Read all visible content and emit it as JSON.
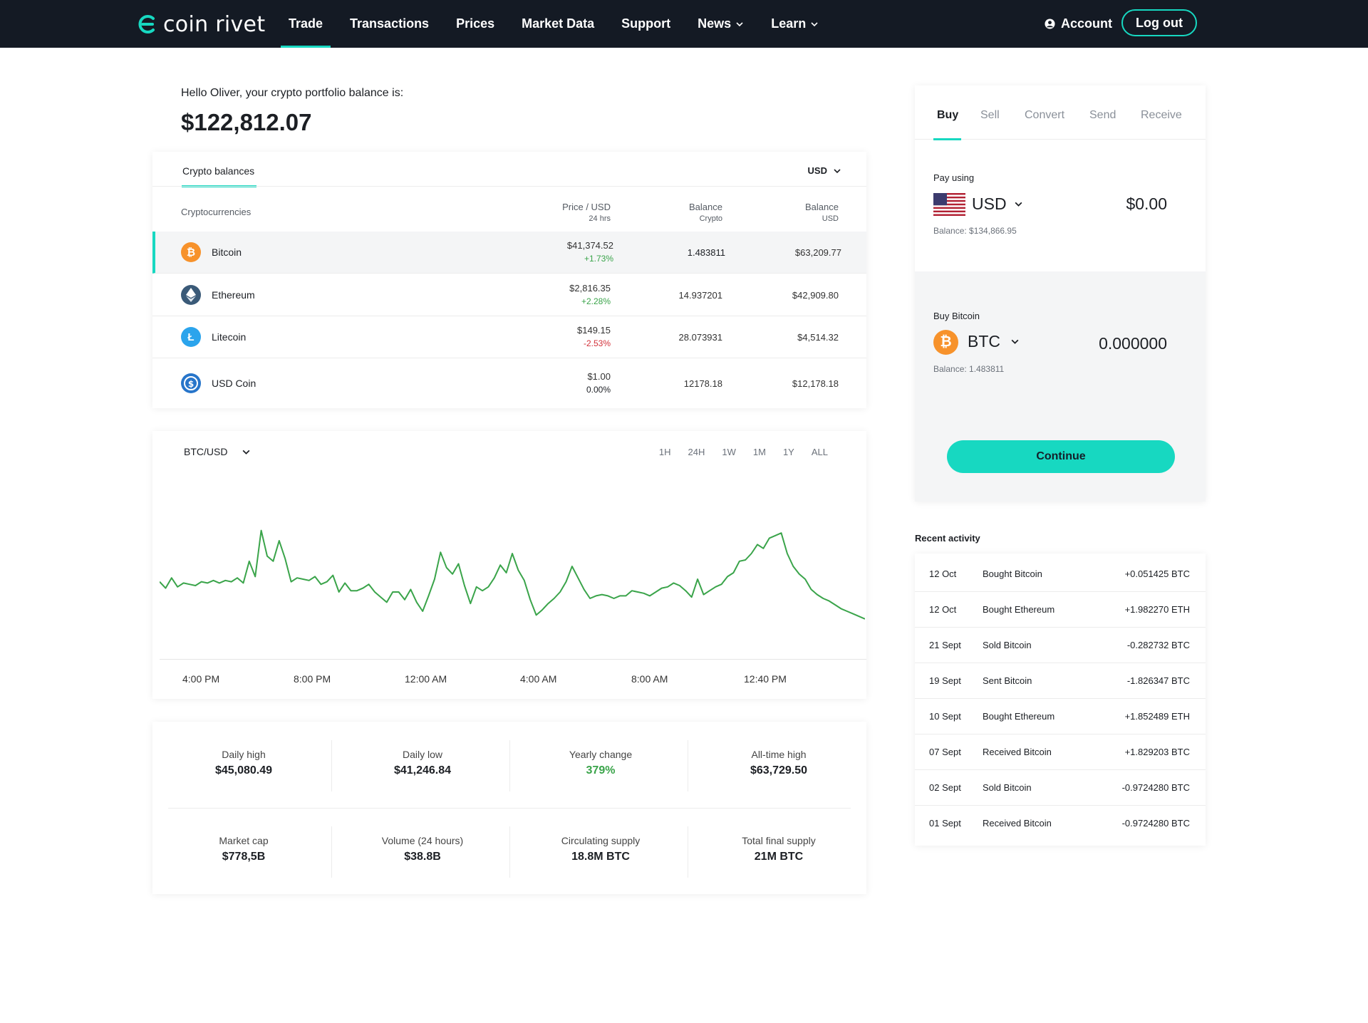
{
  "nav": {
    "logo": "coin rivet",
    "items": [
      {
        "label": "Trade",
        "active": true,
        "dropdown": false
      },
      {
        "label": "Transactions",
        "active": false,
        "dropdown": false
      },
      {
        "label": "Prices",
        "active": false,
        "dropdown": false
      },
      {
        "label": "Market Data",
        "active": false,
        "dropdown": false
      },
      {
        "label": "Support",
        "active": false,
        "dropdown": false
      },
      {
        "label": "News",
        "active": false,
        "dropdown": true
      },
      {
        "label": "Learn",
        "active": false,
        "dropdown": true
      }
    ],
    "account": "Account",
    "logout": "Log out"
  },
  "greeting": {
    "text": "Hello Oliver, your crypto portfolio balance is:",
    "balance": "$122,812.07"
  },
  "balances": {
    "tab": "Crypto balances",
    "currency": "USD",
    "headers": {
      "name": "Cryptocurrencies",
      "price": "Price / USD",
      "price_sub": "24 hrs",
      "crypto": "Balance",
      "crypto_sub": "Crypto",
      "usd": "Balance",
      "usd_sub": "USD"
    },
    "rows": [
      {
        "name": "Bitcoin",
        "icon": "bitcoin-icon",
        "price": "$41,374.52",
        "change": "+1.73%",
        "trend": "pos",
        "crypto": "1.483811",
        "usd": "$63,209.77"
      },
      {
        "name": "Ethereum",
        "icon": "ethereum-icon",
        "price": "$2,816.35",
        "change": "+2.28%",
        "trend": "pos",
        "crypto": "14.937201",
        "usd": "$42,909.80"
      },
      {
        "name": "Litecoin",
        "icon": "litecoin-icon",
        "price": "$149.15",
        "change": "-2.53%",
        "trend": "neg",
        "crypto": "28.073931",
        "usd": "$4,514.32"
      },
      {
        "name": "USD Coin",
        "icon": "usd-coin-icon",
        "price": "$1.00",
        "change": "0.00%",
        "trend": "zero",
        "crypto": "12178.18",
        "usd": "$12,178.18"
      }
    ]
  },
  "chart": {
    "pair": "BTC/USD",
    "ranges": [
      "1H",
      "24H",
      "1W",
      "1M",
      "1Y",
      "ALL"
    ],
    "x_labels": [
      "4:00 PM",
      "8:00 PM",
      "12:00 AM",
      "4:00 AM",
      "8:00 AM",
      "12:40 PM"
    ],
    "line_color": "#3aa44a"
  },
  "chart_data": {
    "type": "line",
    "title": "",
    "xlabel": "",
    "ylabel": "",
    "x_tick_labels": [
      "4:00 PM",
      "8:00 PM",
      "12:00 AM",
      "4:00 AM",
      "8:00 AM",
      "12:40 PM"
    ],
    "series": [
      {
        "values": [
          0.38,
          0.33,
          0.41,
          0.34,
          0.37,
          0.36,
          0.35,
          0.38,
          0.37,
          0.39,
          0.37,
          0.39,
          0.38,
          0.41,
          0.37,
          0.54,
          0.42,
          0.78,
          0.58,
          0.54,
          0.7,
          0.56,
          0.38,
          0.41,
          0.4,
          0.39,
          0.42,
          0.36,
          0.38,
          0.43,
          0.3,
          0.37,
          0.31,
          0.31,
          0.33,
          0.36,
          0.3,
          0.26,
          0.22,
          0.3,
          0.3,
          0.24,
          0.32,
          0.22,
          0.15,
          0.27,
          0.4,
          0.61,
          0.49,
          0.44,
          0.52,
          0.35,
          0.21,
          0.34,
          0.31,
          0.34,
          0.41,
          0.51,
          0.45,
          0.6,
          0.47,
          0.39,
          0.24,
          0.12,
          0.16,
          0.21,
          0.25,
          0.3,
          0.38,
          0.5,
          0.41,
          0.32,
          0.25,
          0.27,
          0.28,
          0.27,
          0.25,
          0.27,
          0.27,
          0.31,
          0.3,
          0.29,
          0.27,
          0.3,
          0.33,
          0.34,
          0.37,
          0.35,
          0.31,
          0.26,
          0.4,
          0.28,
          0.31,
          0.34,
          0.36,
          0.42,
          0.45,
          0.54,
          0.55,
          0.6,
          0.67,
          0.64,
          0.72,
          0.74,
          0.76,
          0.6,
          0.5,
          0.44,
          0.4,
          0.32,
          0.28,
          0.25,
          0.23,
          0.2,
          0.17,
          0.15,
          0.13,
          0.11,
          0.09
        ]
      }
    ],
    "grid": false,
    "legend": "none"
  },
  "stats": [
    {
      "label": "Daily high",
      "value": "$45,080.49",
      "green": false
    },
    {
      "label": "Daily low",
      "value": "$41,246.84",
      "green": false
    },
    {
      "label": "Yearly change",
      "value": "379%",
      "green": true
    },
    {
      "label": "All-time high",
      "value": "$63,729.50",
      "green": false
    },
    {
      "label": "Market cap",
      "value": "$778,5B",
      "green": false
    },
    {
      "label": "Volume (24 hours)",
      "value": "$38.8B",
      "green": false
    },
    {
      "label": "Circulating supply",
      "value": "18.8M BTC",
      "green": false
    },
    {
      "label": "Total final supply",
      "value": "21M BTC",
      "green": false
    }
  ],
  "trade": {
    "tabs": [
      "Buy",
      "Sell",
      "Convert",
      "Send",
      "Receive"
    ],
    "active_tab": "Buy",
    "pay_label": "Pay using",
    "pay_currency": "USD",
    "pay_amount": "$0.00",
    "pay_balance": "Balance: $134,866.95",
    "buy_label": "Buy Bitcoin",
    "buy_currency": "BTC",
    "buy_amount": "0.000000",
    "buy_balance": "Balance: 1.483811",
    "continue": "Continue"
  },
  "activity": {
    "title": "Recent activity",
    "rows": [
      {
        "date": "12 Oct",
        "desc": "Bought Bitcoin",
        "amount": "+0.051425 BTC"
      },
      {
        "date": "12 Oct",
        "desc": "Bought Ethereum",
        "amount": "+1.982270 ETH"
      },
      {
        "date": "21 Sept",
        "desc": "Sold Bitcoin",
        "amount": "-0.282732 BTC"
      },
      {
        "date": "19 Sept",
        "desc": "Sent Bitcoin",
        "amount": "-1.826347 BTC"
      },
      {
        "date": "10 Sept",
        "desc": "Bought Ethereum",
        "amount": "+1.852489 ETH"
      },
      {
        "date": "07 Sept",
        "desc": "Received Bitcoin",
        "amount": "+1.829203 BTC"
      },
      {
        "date": "02 Sept",
        "desc": "Sold Bitcoin",
        "amount": "-0.9724280 BTC"
      },
      {
        "date": "01 Sept",
        "desc": "Received Bitcoin",
        "amount": "-0.9724280 BTC"
      }
    ]
  },
  "colors": {
    "accent": "#17d8c1",
    "nav_bg": "#141a24",
    "positive": "#3aa44a",
    "negative": "#d2313a"
  }
}
